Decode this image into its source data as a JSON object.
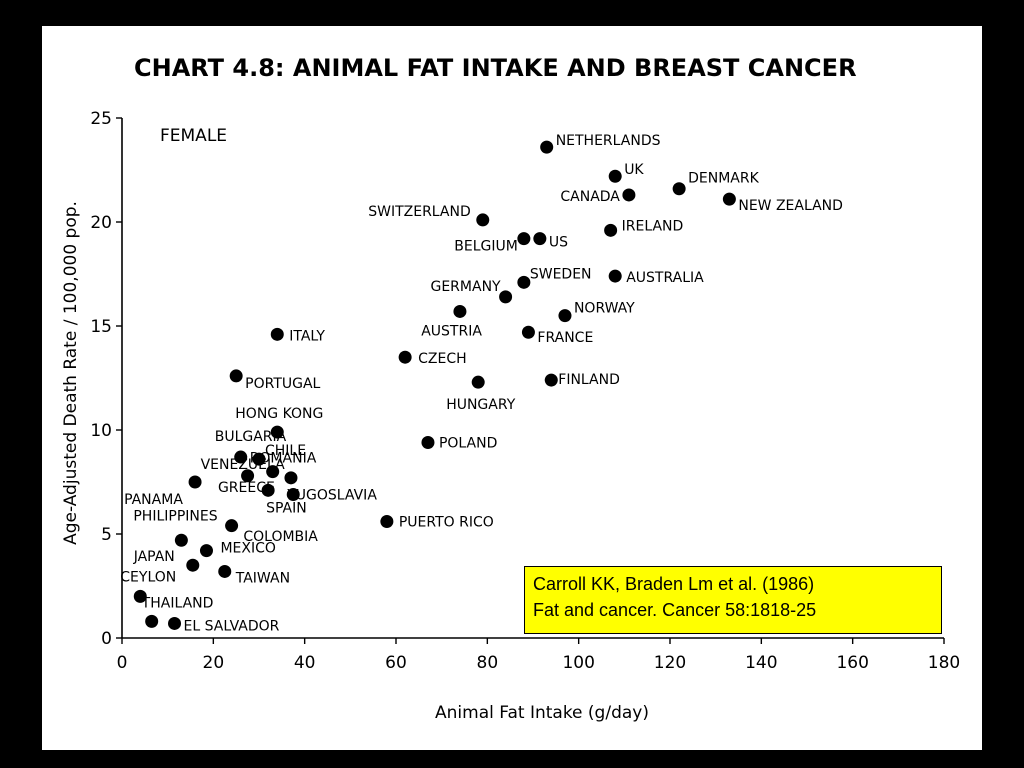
{
  "chart_data": {
    "type": "scatter",
    "title": "CHART 4.8: ANIMAL FAT INTAKE AND BREAST CANCER",
    "panel_label": "FEMALE",
    "xlabel": "Animal Fat Intake (g/day)",
    "ylabel": "Age-Adjusted Death Rate / 100,000 pop.",
    "xlim": [
      0,
      180
    ],
    "ylim": [
      0,
      25
    ],
    "xticks": [
      "0",
      "20",
      "40",
      "60",
      "80",
      "100",
      "120",
      "140",
      "160",
      "180"
    ],
    "yticks": [
      "0",
      "5",
      "10",
      "15",
      "20",
      "25"
    ],
    "grid": false,
    "points": [
      {
        "label": "NETHERLANDS",
        "x": 93,
        "y": 23.6
      },
      {
        "label": "UK",
        "x": 108,
        "y": 22.2
      },
      {
        "label": "DENMARK",
        "x": 122,
        "y": 21.6
      },
      {
        "label": "CANADA",
        "x": 111,
        "y": 21.3
      },
      {
        "label": "NEW ZEALAND",
        "x": 133,
        "y": 21.1
      },
      {
        "label": "SWITZERLAND",
        "x": 79,
        "y": 20.1
      },
      {
        "label": "IRELAND",
        "x": 107,
        "y": 19.6
      },
      {
        "label": "BELGIUM",
        "x": 88,
        "y": 19.2
      },
      {
        "label": "US",
        "x": 91.5,
        "y": 19.2
      },
      {
        "label": "SWEDEN",
        "x": 88,
        "y": 17.1
      },
      {
        "label": "AUSTRALIA",
        "x": 108,
        "y": 17.4
      },
      {
        "label": "GERMANY",
        "x": 84,
        "y": 16.4
      },
      {
        "label": "AUSTRIA",
        "x": 74,
        "y": 15.7
      },
      {
        "label": "NORWAY",
        "x": 97,
        "y": 15.5
      },
      {
        "label": "FRANCE",
        "x": 89,
        "y": 14.7
      },
      {
        "label": "ITALY",
        "x": 34,
        "y": 14.6
      },
      {
        "label": "CZECH",
        "x": 62,
        "y": 13.5
      },
      {
        "label": "PORTUGAL",
        "x": 25,
        "y": 12.6
      },
      {
        "label": "HUNGARY",
        "x": 78,
        "y": 12.3
      },
      {
        "label": "FINLAND",
        "x": 94,
        "y": 12.4
      },
      {
        "label": "HONG KONG",
        "x": 34,
        "y": 9.9
      },
      {
        "label": "POLAND",
        "x": 67,
        "y": 9.4
      },
      {
        "label": "BULGARIA",
        "x": 26,
        "y": 8.7
      },
      {
        "label": "CHILE",
        "x": 30,
        "y": 8.6
      },
      {
        "label": "VENEZUELA",
        "x": 27.5,
        "y": 7.8
      },
      {
        "label": "ROMANIA",
        "x": 33,
        "y": 8.0
      },
      {
        "label": "PANAMA",
        "x": 16,
        "y": 7.5
      },
      {
        "label": "GREECE",
        "x": 37,
        "y": 7.7
      },
      {
        "label": "SPAIN",
        "x": 32,
        "y": 7.1
      },
      {
        "label": "YUGOSLAVIA",
        "x": 37.5,
        "y": 6.9
      },
      {
        "label": "PUERTO RICO",
        "x": 58,
        "y": 5.6
      },
      {
        "label": "PHILIPPINES",
        "x": 24,
        "y": 5.4
      },
      {
        "label": "COLOMBIA",
        "x": 13,
        "y": 4.7
      },
      {
        "label": "MEXICO",
        "x": 18.5,
        "y": 4.2
      },
      {
        "label": "JAPAN",
        "x": 15.5,
        "y": 3.5
      },
      {
        "label": "TAIWAN",
        "x": 22.5,
        "y": 3.2
      },
      {
        "label": "CEYLON",
        "x": 4,
        "y": 2.0
      },
      {
        "label": "THAILAND",
        "x": 6.5,
        "y": 0.8
      },
      {
        "label": "EL SALVADOR",
        "x": 11.5,
        "y": 0.7
      }
    ]
  },
  "citation": {
    "line1": "Carroll KK, Braden Lm et al. (1986)",
    "line2": "Fat and cancer. Cancer 58:1818-25"
  },
  "colors": {
    "background": "#000000",
    "slide": "#ffffff",
    "citation_box": "#ffff00"
  }
}
